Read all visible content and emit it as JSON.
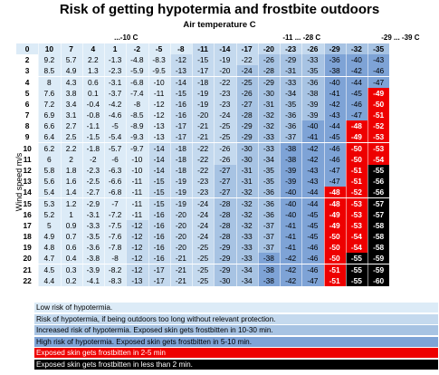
{
  "title": "Risk of getting hypotermia and frostbite outdoors",
  "subtitle": "Air temperature C",
  "ylabel": "Wind speed m/s",
  "temp_groups": [
    {
      "label": "...-10 C",
      "from": 0,
      "to": 10
    },
    {
      "label": "-11 ... -28 C",
      "from": 10,
      "to": 16
    },
    {
      "label": "-29 ... -39 C",
      "from": 16,
      "to": 19
    }
  ],
  "colors": {
    "c1": "#dcebf7",
    "c2": "#c4d9ee",
    "c3": "#a7c3e3",
    "c4": "#7ea3d6",
    "c5": "#ee0000",
    "c6": "#000000"
  },
  "legend": [
    {
      "text": "Low risk of hypotermia.",
      "color": "#dcebf7",
      "text_color": "#000000"
    },
    {
      "text": "Risk of hypotermia, if being outdoors too long without relevant protection.",
      "color": "#c4d9ee",
      "text_color": "#000000"
    },
    {
      "text": "Increased risk of hypotermia. Exposed skin gets frostbitten in 10-30 min.",
      "color": "#a7c3e3",
      "text_color": "#000000"
    },
    {
      "text": "High risk of hypotermia. Exposed skin gets frostbitten in 5-10 min.",
      "color": "#7ea3d6",
      "text_color": "#000000"
    },
    {
      "text": "Exposed skin gets frostbitten in 2-5 min",
      "color": "#ee0000",
      "text_color": "#ffffff"
    },
    {
      "text": "Exposed skin gets frostbitten in less than 2 min.",
      "color": "#000000",
      "text_color": "#ffffff"
    }
  ],
  "chart_data": {
    "type": "table",
    "title": "Risk of getting hypotermia and frostbite outdoors",
    "xlabel": "Air temperature C",
    "ylabel": "Wind speed m/s",
    "temperatures": [
      10,
      7,
      4,
      1,
      -2,
      -5,
      -8,
      -11,
      -14,
      -17,
      -20,
      -23,
      -26,
      -29,
      -32,
      -35
    ],
    "rows": [
      {
        "wind": "0",
        "values": [
          10,
          7,
          4,
          1,
          -2,
          -5,
          -8,
          -11,
          -14,
          -17,
          -20,
          -23,
          -26,
          -29,
          -32,
          -35
        ],
        "risk": [
          1,
          1,
          1,
          1,
          1,
          1,
          1,
          2,
          2,
          2,
          2,
          2,
          2,
          3,
          3,
          3
        ]
      },
      {
        "wind": "2",
        "values": [
          9.2,
          5.7,
          2.2,
          -1.3,
          -4.8,
          -8.3,
          -12,
          -15,
          -19,
          -22,
          -26,
          -29,
          -33,
          -36,
          -40,
          -43
        ],
        "risk": [
          1,
          1,
          1,
          1,
          1,
          1,
          2,
          2,
          2,
          2,
          3,
          3,
          3,
          4,
          4,
          4
        ]
      },
      {
        "wind": "3",
        "values": [
          8.5,
          4.9,
          1.3,
          -2.3,
          -5.9,
          -9.5,
          -13,
          -17,
          -20,
          -24,
          -28,
          -31,
          -35,
          -38,
          -42,
          -46
        ],
        "risk": [
          1,
          1,
          1,
          1,
          1,
          1,
          2,
          2,
          2,
          3,
          3,
          3,
          3,
          4,
          4,
          4
        ]
      },
      {
        "wind": "4",
        "values": [
          8.0,
          4.3,
          0.6,
          -3.1,
          -6.8,
          -10,
          -14,
          -18,
          -22,
          -25,
          -29,
          -33,
          -36,
          -40,
          -44,
          -47
        ],
        "risk": [
          1,
          1,
          1,
          1,
          1,
          1,
          2,
          2,
          2,
          3,
          3,
          3,
          3,
          4,
          4,
          4
        ]
      },
      {
        "wind": "5",
        "values": [
          7.6,
          3.8,
          0.1,
          -3.7,
          -7.4,
          -11,
          -15,
          -19,
          -23,
          -26,
          -30,
          -34,
          -38,
          -41,
          -45,
          -49
        ],
        "risk": [
          1,
          1,
          1,
          1,
          1,
          1,
          2,
          2,
          2,
          3,
          3,
          3,
          3,
          4,
          4,
          5
        ]
      },
      {
        "wind": "6",
        "values": [
          7.2,
          3.4,
          -0.4,
          -4.2,
          -8,
          -12,
          -16,
          -19,
          -23,
          -27,
          -31,
          -35,
          -39,
          -42,
          -46,
          -50
        ],
        "risk": [
          1,
          1,
          1,
          1,
          1,
          1,
          2,
          2,
          2,
          3,
          3,
          3,
          3,
          4,
          4,
          5
        ]
      },
      {
        "wind": "7",
        "values": [
          6.9,
          3.1,
          -0.8,
          -4.6,
          -8.5,
          -12,
          -16,
          -20,
          -24,
          -28,
          -32,
          -36,
          -39,
          -43,
          -47,
          -51
        ],
        "risk": [
          1,
          1,
          1,
          1,
          1,
          1,
          2,
          2,
          2,
          3,
          3,
          3,
          3,
          4,
          4,
          5
        ]
      },
      {
        "wind": "8",
        "values": [
          6.6,
          2.7,
          -1.1,
          -5,
          -8.9,
          -13,
          -17,
          -21,
          -25,
          -29,
          -32,
          -36,
          -40,
          -44,
          -48,
          -52
        ],
        "risk": [
          1,
          1,
          1,
          1,
          1,
          1,
          2,
          2,
          2,
          3,
          3,
          3,
          4,
          4,
          5,
          5
        ]
      },
      {
        "wind": "9",
        "values": [
          6.4,
          2.5,
          -1.5,
          -5.4,
          -9.3,
          -13,
          -17,
          -21,
          -25,
          -29,
          -33,
          -37,
          -41,
          -45,
          -49,
          -53
        ],
        "risk": [
          1,
          1,
          1,
          1,
          1,
          1,
          2,
          2,
          2,
          3,
          3,
          3,
          4,
          4,
          5,
          5
        ]
      },
      {
        "wind": "10",
        "values": [
          6.2,
          2.2,
          -1.8,
          -5.7,
          -9.7,
          -14,
          -18,
          -22,
          -26,
          -30,
          -33,
          -38,
          -42,
          -46,
          -50,
          -53
        ],
        "risk": [
          1,
          1,
          1,
          1,
          1,
          2,
          2,
          2,
          2,
          3,
          3,
          4,
          4,
          4,
          5,
          5
        ]
      },
      {
        "wind": "11",
        "values": [
          6,
          2,
          -2,
          -6,
          -10,
          -14,
          -18,
          -22,
          -26,
          -30,
          -34,
          -38,
          -42,
          -46,
          -50,
          -54
        ],
        "risk": [
          1,
          1,
          1,
          1,
          1,
          2,
          2,
          2,
          2,
          3,
          3,
          4,
          4,
          4,
          5,
          5
        ]
      },
      {
        "wind": "12",
        "values": [
          5.8,
          1.8,
          -2.3,
          -6.3,
          -10,
          -14,
          -18,
          -22,
          -27,
          -31,
          -35,
          -39,
          -43,
          -47,
          -51,
          -55
        ],
        "risk": [
          1,
          1,
          1,
          1,
          1,
          2,
          2,
          2,
          3,
          3,
          3,
          4,
          4,
          4,
          5,
          6
        ]
      },
      {
        "wind": "13",
        "values": [
          5.6,
          1.6,
          -2.5,
          -6.6,
          -11,
          -15,
          -19,
          -23,
          -27,
          -31,
          -35,
          -39,
          -43,
          -47,
          -51,
          -56
        ],
        "risk": [
          1,
          1,
          1,
          1,
          1,
          2,
          2,
          2,
          3,
          3,
          3,
          4,
          4,
          4,
          5,
          6
        ]
      },
      {
        "wind": "14",
        "values": [
          5.4,
          1.4,
          -2.7,
          -6.8,
          -11,
          -15,
          -19,
          -23,
          -27,
          -32,
          -36,
          -40,
          -44,
          -48,
          -52,
          -56
        ],
        "risk": [
          1,
          1,
          1,
          1,
          1,
          2,
          2,
          2,
          3,
          3,
          3,
          4,
          4,
          5,
          5,
          6
        ]
      },
      {
        "wind": "15",
        "values": [
          5.3,
          1.2,
          -2.9,
          -7,
          -11,
          -15,
          -19,
          -24,
          -28,
          -32,
          -36,
          -40,
          -44,
          -48,
          -53,
          -57
        ],
        "risk": [
          1,
          1,
          1,
          1,
          1,
          2,
          2,
          2,
          3,
          3,
          3,
          4,
          4,
          5,
          5,
          6
        ]
      },
      {
        "wind": "16",
        "values": [
          5.2,
          1,
          -3.1,
          -7.2,
          -11,
          -16,
          -20,
          -24,
          -28,
          -32,
          -36,
          -40,
          -45,
          -49,
          -53,
          -57
        ],
        "risk": [
          1,
          1,
          1,
          1,
          1,
          2,
          2,
          2,
          3,
          3,
          3,
          4,
          4,
          5,
          5,
          6
        ]
      },
      {
        "wind": "17",
        "values": [
          5,
          0.9,
          -3.3,
          -7.5,
          -12,
          -16,
          -20,
          -24,
          -28,
          -32,
          -37,
          -41,
          -45,
          -49,
          -53,
          -58
        ],
        "risk": [
          1,
          1,
          1,
          1,
          2,
          2,
          2,
          2,
          3,
          3,
          3,
          4,
          4,
          5,
          5,
          6
        ]
      },
      {
        "wind": "18",
        "values": [
          4.9,
          0.7,
          -3.5,
          -7.6,
          -12,
          -16,
          -20,
          -24,
          -28,
          -33,
          -37,
          -41,
          -45,
          -50,
          -54,
          -58
        ],
        "risk": [
          1,
          1,
          1,
          1,
          2,
          2,
          2,
          2,
          3,
          3,
          3,
          4,
          4,
          5,
          5,
          6
        ]
      },
      {
        "wind": "19",
        "values": [
          4.8,
          0.6,
          -3.6,
          -7.8,
          -12,
          -16,
          -20,
          -25,
          -29,
          -33,
          -37,
          -41,
          -46,
          -50,
          -54,
          -58
        ],
        "risk": [
          1,
          1,
          1,
          1,
          2,
          2,
          2,
          2,
          3,
          3,
          3,
          4,
          4,
          5,
          5,
          6
        ]
      },
      {
        "wind": "20",
        "values": [
          4.7,
          0.4,
          -3.8,
          -8,
          -12,
          -16,
          -21,
          -25,
          -29,
          -33,
          -38,
          -42,
          -46,
          -50,
          -55,
          -59
        ],
        "risk": [
          1,
          1,
          1,
          1,
          2,
          2,
          2,
          2,
          3,
          3,
          4,
          4,
          4,
          5,
          6,
          6
        ]
      },
      {
        "wind": "21",
        "values": [
          4.5,
          0.3,
          -3.9,
          -8.2,
          -12,
          -17,
          -21,
          -25,
          -29,
          -34,
          -38,
          -42,
          -46,
          -51,
          -55,
          -59
        ],
        "risk": [
          1,
          1,
          1,
          1,
          2,
          2,
          2,
          2,
          3,
          3,
          4,
          4,
          4,
          5,
          6,
          6
        ]
      },
      {
        "wind": "22",
        "values": [
          4.4,
          0.2,
          -4.1,
          -8.3,
          -13,
          -17,
          -21,
          -25,
          -30,
          -34,
          -38,
          -42,
          -47,
          -51,
          -55,
          -60
        ],
        "risk": [
          1,
          1,
          1,
          1,
          2,
          2,
          2,
          2,
          3,
          3,
          4,
          4,
          4,
          5,
          6,
          6
        ]
      }
    ]
  }
}
